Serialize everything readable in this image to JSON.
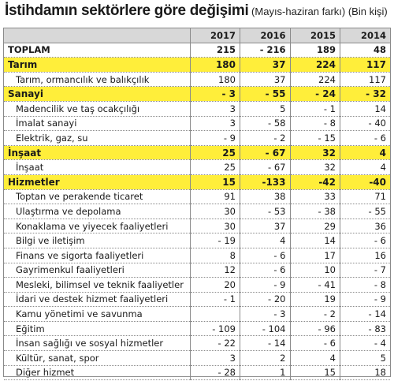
{
  "title": {
    "main": "İstihdamın sektörlere göre değişimi",
    "sub": " (Mayıs-haziran farkı) (Bin kişi)"
  },
  "years": [
    "2017",
    "2016",
    "2015",
    "2014"
  ],
  "rows": [
    {
      "type": "total",
      "label": "TOPLAM",
      "values": [
        "215",
        "- 216",
        "189",
        "48"
      ]
    },
    {
      "type": "sector",
      "label": "Tarım",
      "values": [
        "180",
        "37",
        "224",
        "117"
      ]
    },
    {
      "type": "sub",
      "label": "Tarım, ormancılık ve balıkçılık",
      "values": [
        "180",
        "37",
        "224",
        "117"
      ]
    },
    {
      "type": "sector",
      "label": "Sanayi",
      "values": [
        "- 3",
        "- 55",
        "- 24",
        "- 32"
      ]
    },
    {
      "type": "sub",
      "label": "Madencilik ve taş ocakçılığı",
      "values": [
        "3",
        "5",
        "- 1",
        "14"
      ]
    },
    {
      "type": "sub",
      "label": "İmalat sanayi",
      "values": [
        "3",
        "- 58",
        "- 8",
        "- 40"
      ]
    },
    {
      "type": "sub",
      "label": "Elektrik, gaz, su",
      "values": [
        "- 9",
        "- 2",
        "- 15",
        "- 6"
      ]
    },
    {
      "type": "sector",
      "label": "İnşaat",
      "values": [
        "25",
        "- 67",
        "32",
        "4"
      ]
    },
    {
      "type": "sub",
      "label": "İnşaat",
      "values": [
        "25",
        "- 67",
        "32",
        "4"
      ]
    },
    {
      "type": "sector",
      "label": "Hizmetler",
      "values": [
        "15",
        "-133",
        "-42",
        "-40"
      ]
    },
    {
      "type": "sub",
      "label": "Toptan ve perakende ticaret",
      "values": [
        "91",
        "38",
        "33",
        "71"
      ]
    },
    {
      "type": "sub",
      "label": "Ulaştırma ve depolama",
      "values": [
        "30",
        "- 53",
        "- 38",
        "- 55"
      ]
    },
    {
      "type": "sub",
      "label": "Konaklama ve yiyecek faaliyetleri",
      "values": [
        "30",
        "37",
        "29",
        "36"
      ]
    },
    {
      "type": "sub",
      "label": "Bilgi ve iletişim",
      "values": [
        "- 19",
        "4",
        "14",
        "- 6"
      ]
    },
    {
      "type": "sub",
      "label": "Finans ve sigorta faaliyetleri",
      "values": [
        "8",
        "- 6",
        "17",
        "16"
      ]
    },
    {
      "type": "sub",
      "label": "Gayrimenkul faaliyetleri",
      "values": [
        "12",
        "- 6",
        "10",
        "- 7"
      ]
    },
    {
      "type": "sub",
      "label": "Mesleki, bilimsel ve teknik faaliyetler",
      "values": [
        "20",
        "- 9",
        "- 41",
        "- 8"
      ]
    },
    {
      "type": "sub",
      "label": "İdari ve destek hizmet faaliyetleri",
      "values": [
        "- 1",
        "- 20",
        "19",
        "- 9"
      ]
    },
    {
      "type": "sub",
      "label": "Kamu yönetimi ve savunma",
      "values": [
        "",
        "- 3",
        "- 2",
        "- 14"
      ]
    },
    {
      "type": "sub",
      "label": "Eğitim",
      "values": [
        "- 109",
        "- 104",
        "- 96",
        "- 83"
      ]
    },
    {
      "type": "sub",
      "label": "İnsan sağlığı ve sosyal hizmetler",
      "values": [
        "- 22",
        "- 14",
        "- 6",
        "- 4"
      ]
    },
    {
      "type": "sub",
      "label": "Kültür, sanat, spor",
      "values": [
        "3",
        "2",
        "4",
        "5"
      ]
    },
    {
      "type": "sub",
      "label": "Diğer hizmet",
      "values": [
        "- 28",
        "1",
        "15",
        "18"
      ]
    }
  ]
}
